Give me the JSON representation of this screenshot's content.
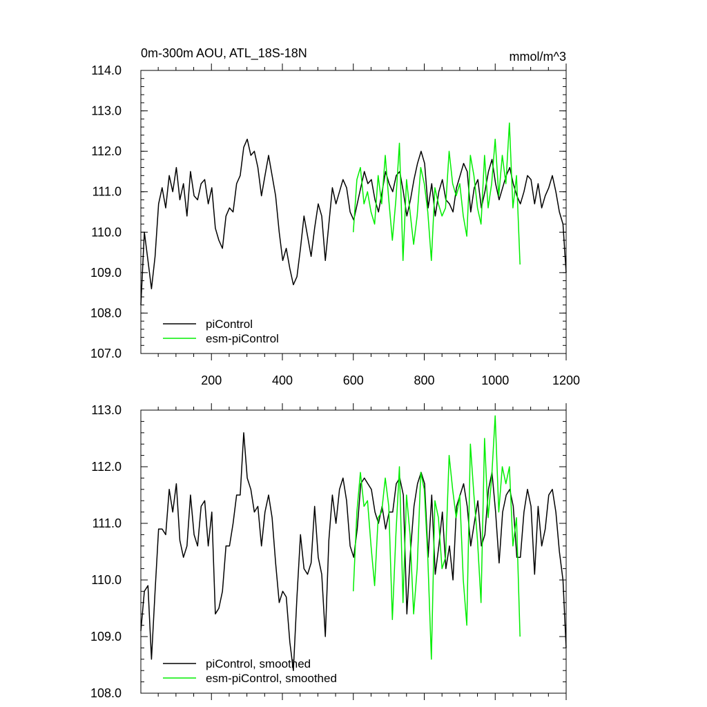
{
  "chart_data": [
    {
      "type": "line",
      "title": "0m-300m AOU, ATL_18S-18N",
      "units": "mmol/m^3",
      "xlim": [
        1,
        1200
      ],
      "ylim": [
        107.0,
        114.0
      ],
      "xticks": [
        200,
        400,
        600,
        800,
        1000,
        1200
      ],
      "xtick_labels": [
        "200",
        "400",
        "600",
        "800",
        "1000",
        "1200"
      ],
      "yticks": [
        107.0,
        108.0,
        109.0,
        110.0,
        111.0,
        112.0,
        113.0,
        114.0
      ],
      "ytick_labels": [
        "107.0",
        "108.0",
        "109.0",
        "110.0",
        "111.0",
        "112.0",
        "113.0",
        "114.0"
      ],
      "legend": {
        "placement": "bottom-left"
      },
      "series": [
        {
          "name": "piControl",
          "color": "#000000",
          "x_start": 1,
          "x_step": 10,
          "values": [
            108.2,
            110.0,
            109.3,
            108.6,
            109.4,
            110.7,
            111.1,
            110.6,
            111.4,
            111.0,
            111.6,
            110.8,
            111.2,
            110.4,
            111.5,
            110.9,
            110.8,
            111.2,
            111.3,
            110.7,
            111.1,
            110.1,
            109.8,
            109.6,
            110.4,
            110.6,
            110.5,
            111.2,
            111.4,
            112.1,
            112.3,
            111.9,
            112.0,
            111.6,
            110.9,
            111.4,
            111.9,
            111.4,
            110.9,
            110.0,
            109.3,
            109.6,
            109.1,
            108.7,
            108.9,
            109.6,
            110.4,
            109.9,
            109.4,
            110.1,
            110.7,
            110.4,
            109.3,
            110.2,
            111.1,
            110.7,
            111.0,
            111.3,
            111.1,
            110.5,
            110.3,
            110.7,
            111.1,
            111.5,
            111.2,
            111.3,
            110.8,
            110.5,
            111.0,
            111.5,
            111.2,
            111.0,
            111.4,
            111.5,
            111.0,
            110.4,
            110.8,
            111.3,
            111.7,
            112.0,
            111.7,
            110.6,
            111.2,
            110.4,
            111.0,
            111.3,
            110.8,
            110.7,
            110.5,
            111.1,
            111.4,
            111.7,
            111.5,
            110.5,
            111.1,
            111.3,
            110.6,
            111.0,
            111.5,
            111.8,
            111.2,
            110.8,
            111.1,
            111.4,
            111.6,
            111.2,
            110.9,
            110.7,
            111.0,
            111.4,
            111.3,
            110.7,
            111.2,
            110.6,
            110.9,
            111.1,
            111.4,
            111.0,
            110.5,
            110.2,
            109.0
          ]
        },
        {
          "name": "esm-piControl",
          "color": "#00ee00",
          "x_start": 600,
          "x_step": 10,
          "values": [
            110.0,
            111.3,
            111.6,
            110.7,
            111.0,
            110.5,
            110.2,
            111.4,
            110.7,
            111.9,
            110.8,
            109.8,
            110.8,
            112.2,
            109.3,
            111.3,
            110.5,
            109.7,
            110.4,
            111.6,
            111.2,
            110.5,
            109.3,
            111.1,
            110.7,
            110.4,
            110.6,
            112.0,
            111.2,
            110.9,
            111.2,
            110.4,
            109.9,
            111.9,
            111.4,
            110.6,
            110.2,
            111.9,
            110.6,
            111.2,
            112.3,
            110.9,
            111.9,
            111.2,
            112.7,
            110.6,
            111.4,
            109.2
          ]
        }
      ]
    },
    {
      "type": "line",
      "xlim": [
        1,
        1200
      ],
      "ylim": [
        108.0,
        113.0
      ],
      "yticks": [
        108.0,
        109.0,
        110.0,
        111.0,
        112.0,
        113.0
      ],
      "ytick_labels": [
        "108.0",
        "109.0",
        "110.0",
        "111.0",
        "112.0",
        "113.0"
      ],
      "legend": {
        "placement": "bottom-left"
      },
      "series": [
        {
          "name": "piControl, smoothed",
          "color": "#000000",
          "x_start": 1,
          "x_step": 10,
          "values": [
            109.1,
            109.8,
            109.9,
            108.6,
            109.8,
            110.9,
            110.9,
            110.8,
            111.6,
            111.2,
            111.7,
            110.7,
            110.4,
            110.6,
            111.5,
            110.8,
            110.6,
            111.3,
            111.4,
            110.6,
            111.2,
            109.4,
            109.5,
            109.8,
            110.6,
            110.6,
            111.0,
            111.5,
            111.5,
            112.6,
            111.8,
            111.6,
            111.2,
            111.3,
            110.6,
            111.2,
            111.5,
            111.1,
            110.3,
            109.6,
            109.8,
            109.7,
            108.9,
            108.4,
            109.7,
            110.8,
            110.2,
            110.1,
            110.3,
            111.3,
            110.4,
            110.1,
            109.0,
            110.7,
            111.5,
            111.0,
            111.6,
            111.8,
            111.4,
            110.6,
            110.4,
            110.9,
            111.7,
            111.8,
            111.7,
            111.6,
            111.2,
            111.0,
            111.3,
            110.9,
            111.2,
            111.2,
            111.7,
            111.8,
            111.5,
            109.4,
            110.5,
            111.3,
            111.7,
            111.9,
            111.7,
            110.4,
            111.5,
            110.1,
            110.6,
            111.2,
            110.2,
            110.6,
            110.0,
            111.3,
            111.5,
            111.7,
            111.3,
            110.6,
            111.0,
            111.4,
            110.6,
            110.8,
            111.6,
            111.9,
            111.2,
            110.3,
            111.2,
            111.5,
            111.6,
            111.3,
            110.4,
            110.4,
            111.2,
            111.6,
            111.3,
            110.1,
            111.3,
            110.6,
            110.9,
            111.5,
            111.6,
            111.2,
            110.5,
            110.0,
            108.8
          ]
        },
        {
          "name": "esm-piControl, smoothed",
          "color": "#00ee00",
          "x_start": 600,
          "x_step": 10,
          "values": [
            109.8,
            111.2,
            111.9,
            111.3,
            111.4,
            110.6,
            109.9,
            111.1,
            111.2,
            111.8,
            111.3,
            109.3,
            110.8,
            112.0,
            109.6,
            111.5,
            110.8,
            109.4,
            110.2,
            111.9,
            111.6,
            110.4,
            108.6,
            111.4,
            111.1,
            110.2,
            110.4,
            112.2,
            111.6,
            111.1,
            111.5,
            110.0,
            109.2,
            112.4,
            111.5,
            110.7,
            109.6,
            112.5,
            111.1,
            111.8,
            112.9,
            111.2,
            112.0,
            111.7,
            112.0,
            110.6,
            111.1,
            109.0
          ]
        }
      ]
    }
  ]
}
